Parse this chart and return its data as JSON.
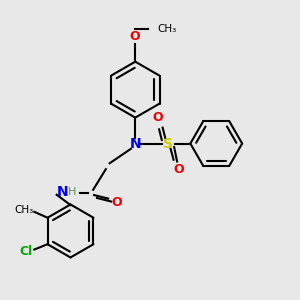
{
  "bg_color": "#e8e8e8",
  "bond_color": "#000000",
  "N_color": "#0000ee",
  "O_color": "#ee0000",
  "S_color": "#cccc00",
  "Cl_color": "#00aa00",
  "H_color": "#559955",
  "figsize": [
    3.0,
    3.0
  ],
  "dpi": 100,
  "xlim": [
    0,
    10
  ],
  "ylim": [
    0,
    10
  ]
}
